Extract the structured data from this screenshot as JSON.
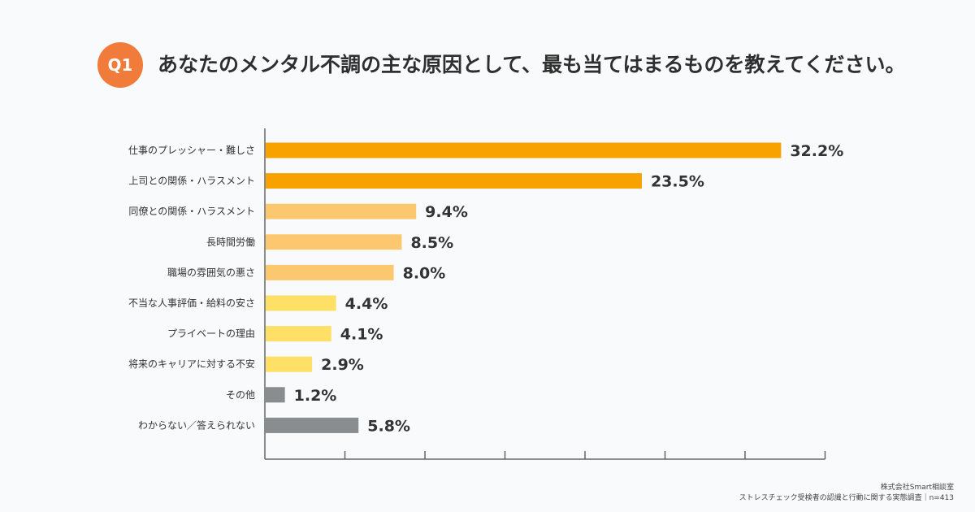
{
  "header": {
    "badge": "Q1",
    "title": "あなたのメンタル不調の主な原因として、最も当てはまるものを教えてください。"
  },
  "footer": {
    "source": "株式会社Smart相談室",
    "note": "ストレスチェック受検者の認識と行動に関する実態調査｜n=413"
  },
  "colors": {
    "dark_orange": "#f8a200",
    "light_orange": "#fcc86f",
    "yellow": "#fee066",
    "gray": "#8a8d90"
  },
  "chart_data": {
    "type": "bar",
    "orientation": "horizontal",
    "unit": "%",
    "categories": [
      "仕事のプレッシャー・難しさ",
      "上司との関係・ハラスメント",
      "同僚との関係・ハラスメント",
      "長時間労働",
      "職場の雰囲気の悪さ",
      "不当な人事評価・給料の安さ",
      "プライベートの理由",
      "将来のキャリアに対する不安",
      "その他",
      "わからない／答えられない"
    ],
    "values": [
      32.2,
      23.5,
      9.4,
      8.5,
      8.0,
      4.4,
      4.1,
      2.9,
      1.2,
      5.8
    ],
    "labels": [
      "32.2%",
      "23.5%",
      "9.4%",
      "8.5%",
      "8.0%",
      "4.4%",
      "4.1%",
      "2.9%",
      "1.2%",
      "5.8%"
    ],
    "bar_colors": [
      "dark_orange",
      "dark_orange",
      "light_orange",
      "light_orange",
      "light_orange",
      "yellow",
      "yellow",
      "yellow",
      "gray",
      "gray"
    ],
    "xlim": [
      0,
      35
    ],
    "xtick_step": 5,
    "tick_labels_shown": false,
    "grid": false
  }
}
